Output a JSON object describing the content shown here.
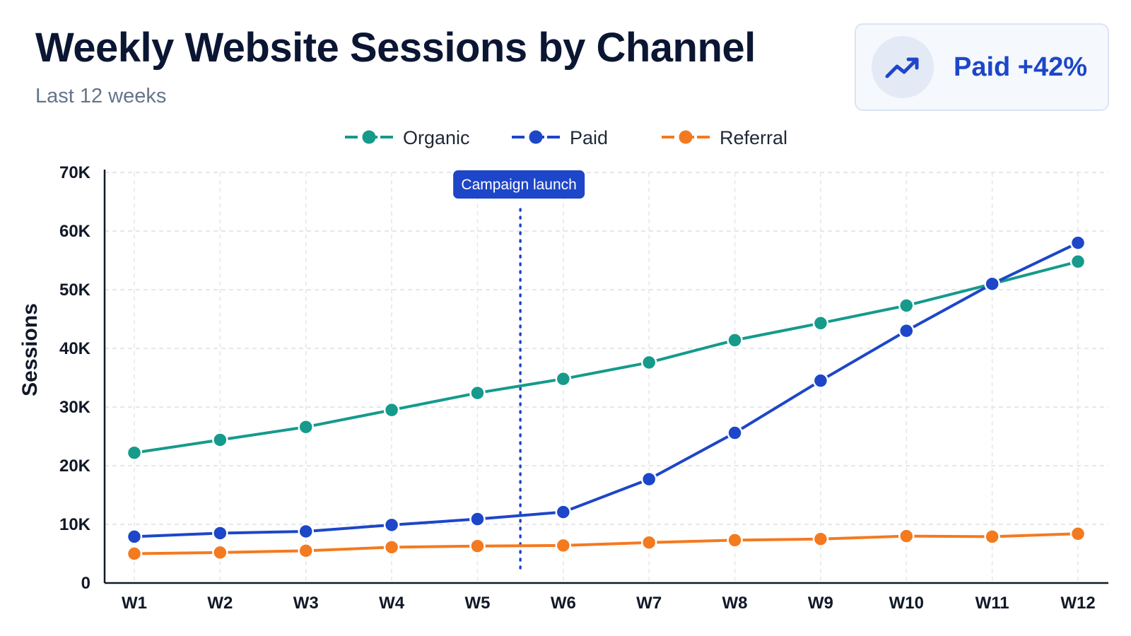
{
  "header": {
    "title": "Weekly Website Sessions by Channel",
    "subtitle": "Last 12 weeks"
  },
  "badge": {
    "text": "Paid +42%",
    "icon": "trending-up-icon",
    "color": "#1d46c8"
  },
  "chart_data": {
    "type": "line",
    "ylabel": "Sessions",
    "xlabel": "",
    "categories": [
      "W1",
      "W2",
      "W3",
      "W4",
      "W5",
      "W6",
      "W7",
      "W8",
      "W9",
      "W10",
      "W11",
      "W12"
    ],
    "ylim": [
      0,
      70000
    ],
    "yticks": [
      0,
      10000,
      20000,
      30000,
      40000,
      50000,
      60000,
      70000
    ],
    "ytick_labels": [
      "0",
      "10K",
      "20K",
      "30K",
      "40K",
      "50K",
      "60K",
      "70K"
    ],
    "grid": true,
    "legend_position": "top-center",
    "series": [
      {
        "name": "Organic",
        "color": "#159a8c",
        "values": [
          22200,
          24400,
          26600,
          29500,
          32400,
          34800,
          37600,
          41400,
          44300,
          47300,
          51000,
          54800
        ]
      },
      {
        "name": "Paid",
        "color": "#1d46c8",
        "values": [
          7900,
          8500,
          8800,
          9900,
          10900,
          12100,
          17700,
          25600,
          34500,
          43000,
          51000,
          58000
        ]
      },
      {
        "name": "Referral",
        "color": "#f47a1f",
        "values": [
          5000,
          5200,
          5500,
          6100,
          6300,
          6400,
          6900,
          7300,
          7500,
          8000,
          7900,
          8400
        ]
      }
    ],
    "annotations": [
      {
        "label": "Campaign launch",
        "x_between": [
          "W5",
          "W6"
        ],
        "style": "dotted-vertical-line",
        "color": "#1d46c8"
      }
    ]
  }
}
